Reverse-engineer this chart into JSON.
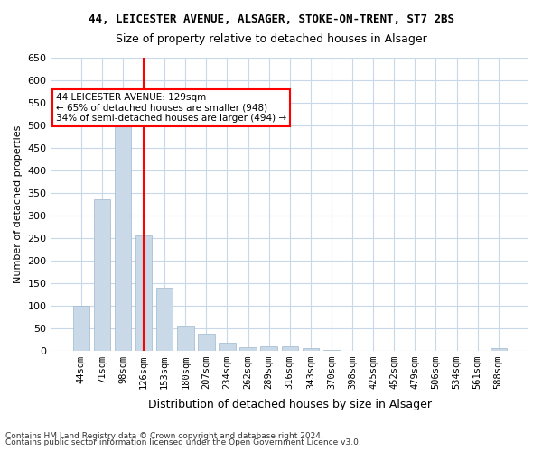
{
  "title1": "44, LEICESTER AVENUE, ALSAGER, STOKE-ON-TRENT, ST7 2BS",
  "title2": "Size of property relative to detached houses in Alsager",
  "xlabel": "Distribution of detached houses by size in Alsager",
  "ylabel": "Number of detached properties",
  "categories": [
    "44sqm",
    "71sqm",
    "98sqm",
    "126sqm",
    "153sqm",
    "180sqm",
    "207sqm",
    "234sqm",
    "262sqm",
    "289sqm",
    "316sqm",
    "343sqm",
    "370sqm",
    "398sqm",
    "425sqm",
    "452sqm",
    "479sqm",
    "506sqm",
    "534sqm",
    "561sqm",
    "588sqm"
  ],
  "values": [
    100,
    335,
    505,
    255,
    140,
    55,
    37,
    17,
    8,
    10,
    10,
    5,
    1,
    0,
    0,
    0,
    0,
    0,
    0,
    0,
    5
  ],
  "bar_color": "#c9d9e8",
  "bar_edge_color": "#a0b8cc",
  "vline_x": 3,
  "vline_color": "red",
  "annotation_text": "44 LEICESTER AVENUE: 129sqm\n← 65% of detached houses are smaller (948)\n34% of semi-detached houses are larger (494) →",
  "annotation_box_color": "white",
  "annotation_box_edge": "red",
  "ylim": [
    0,
    650
  ],
  "yticks": [
    0,
    50,
    100,
    150,
    200,
    250,
    300,
    350,
    400,
    450,
    500,
    550,
    600,
    650
  ],
  "footnote1": "Contains HM Land Registry data © Crown copyright and database right 2024.",
  "footnote2": "Contains public sector information licensed under the Open Government Licence v3.0.",
  "bg_color": "#ffffff",
  "grid_color": "#c8d8e8"
}
